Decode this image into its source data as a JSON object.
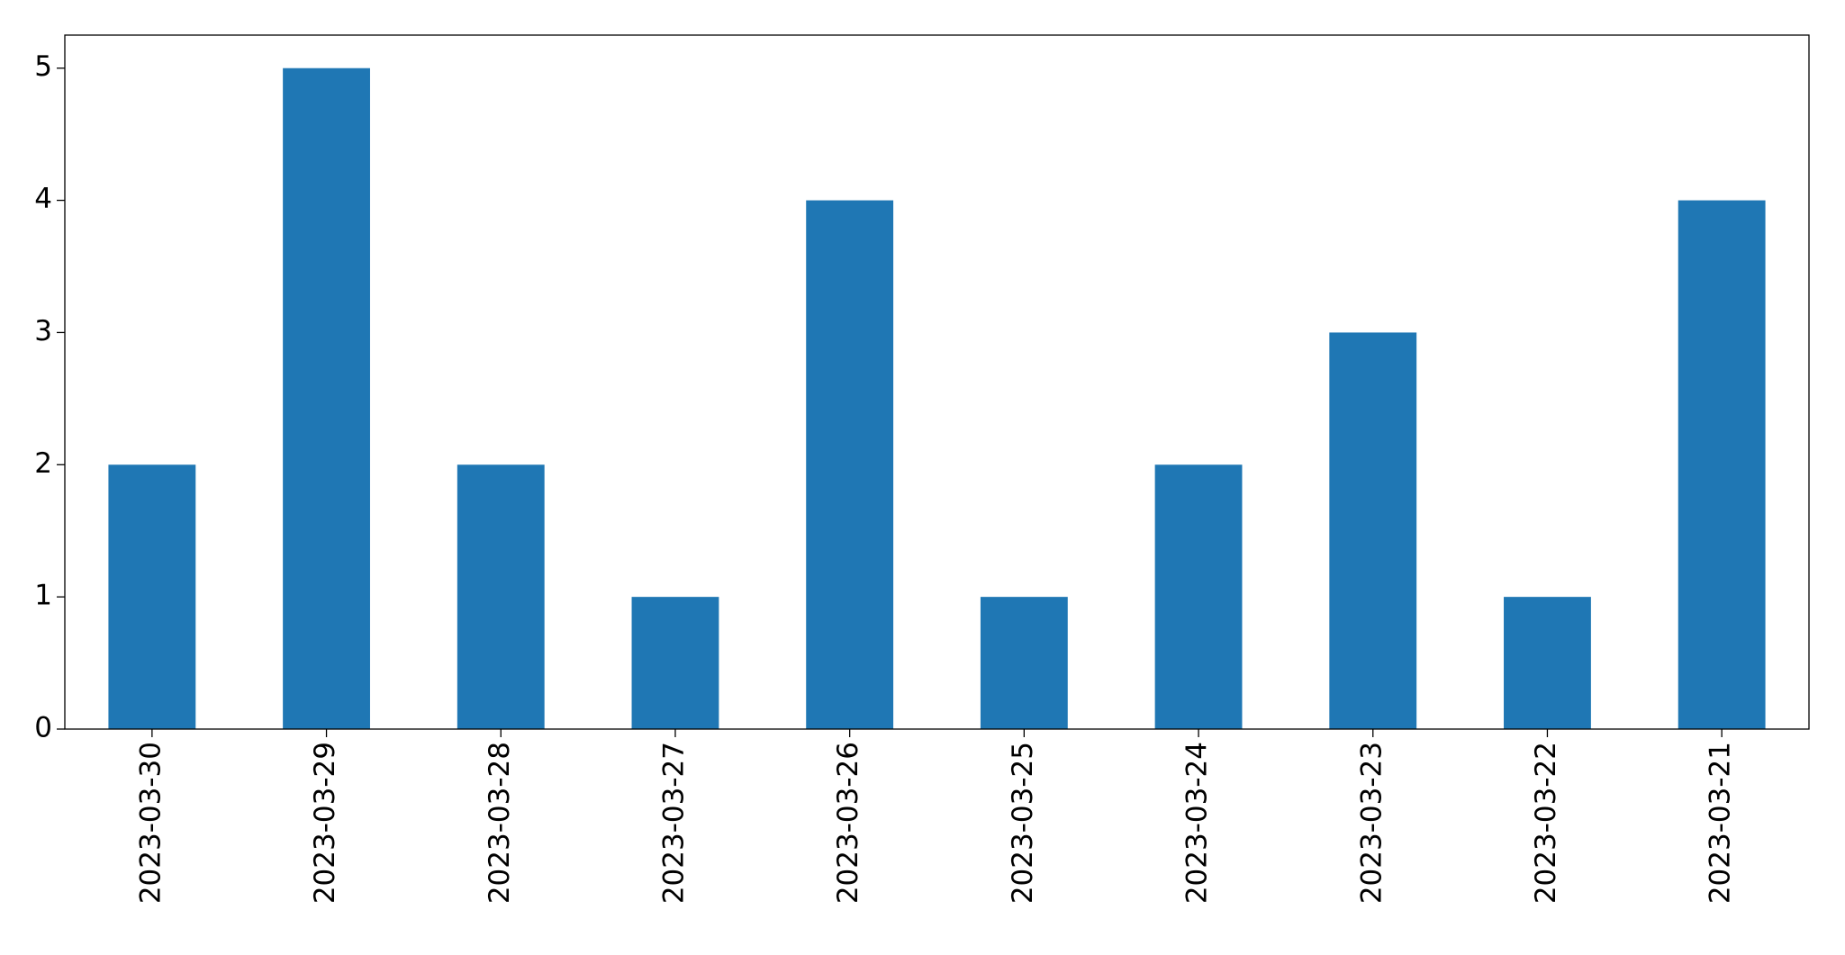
{
  "chart_data": {
    "type": "bar",
    "categories": [
      "2023-03-30",
      "2023-03-29",
      "2023-03-28",
      "2023-03-27",
      "2023-03-26",
      "2023-03-25",
      "2023-03-24",
      "2023-03-23",
      "2023-03-22",
      "2023-03-21"
    ],
    "values": [
      2,
      5,
      2,
      1,
      4,
      1,
      2,
      3,
      1,
      4
    ],
    "color": "#1f77b4",
    "ylim": [
      0,
      5.25
    ],
    "yticks": [
      0,
      1,
      2,
      3,
      4,
      5
    ],
    "grid": false
  }
}
